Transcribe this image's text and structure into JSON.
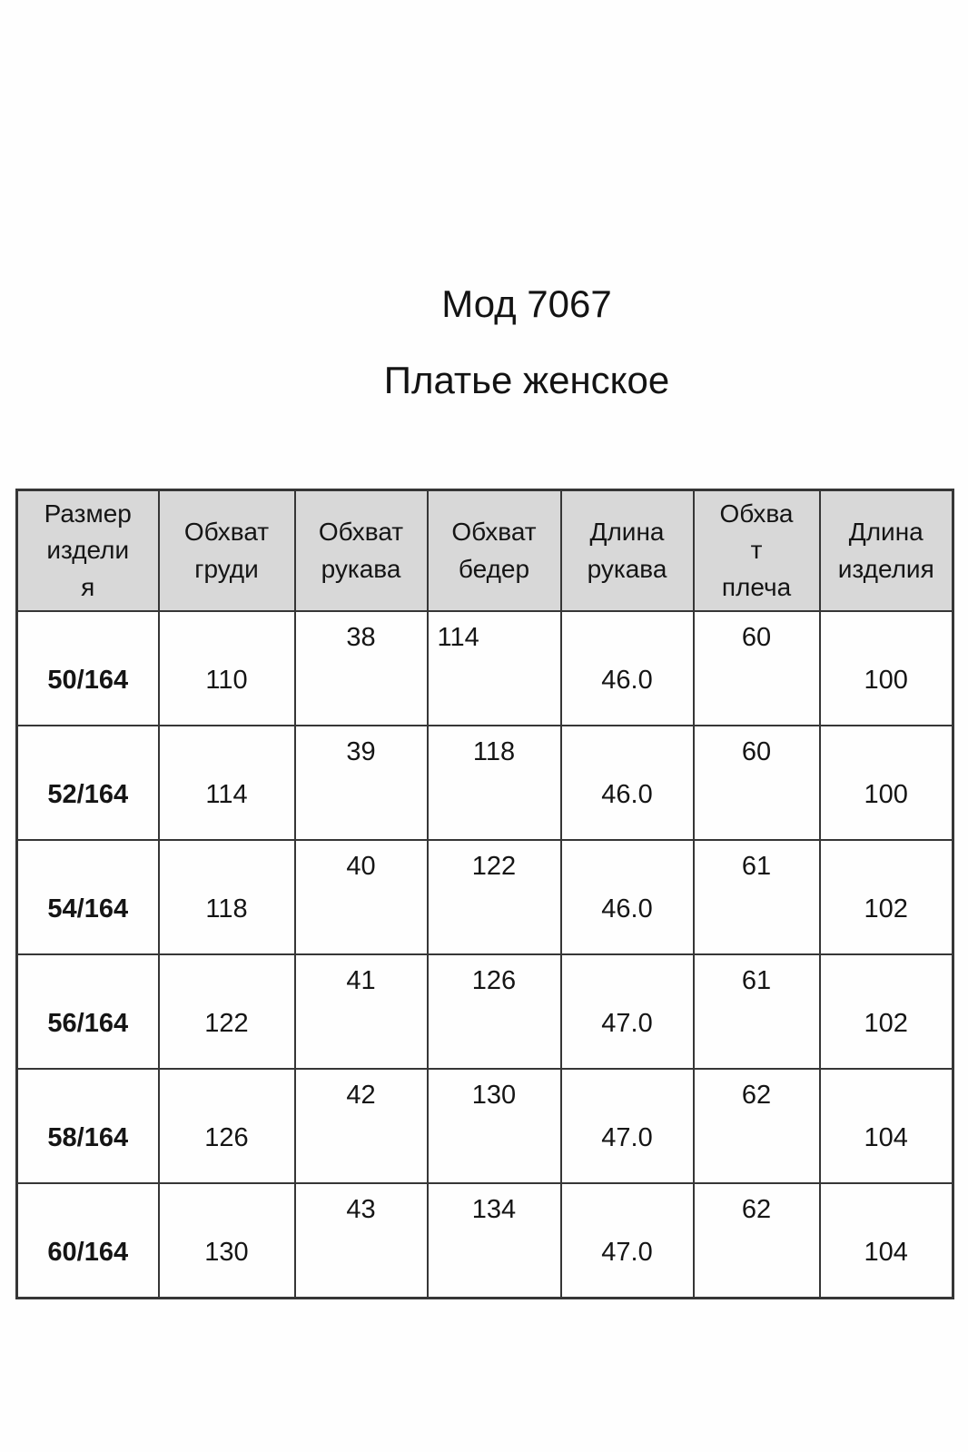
{
  "page": {
    "title": "Мод 7067",
    "subtitle": "Платье женское"
  },
  "size_table": {
    "header_bg": "#d8d8d8",
    "border_color": "#363636",
    "headers": [
      "Размер\nиздели\nя",
      "Обхват\nгруди",
      "Обхват\nрукава",
      "Обхват\nбедер",
      "Длина\nрукава",
      "Обхва\nт\nплеча",
      "Длина\nизделия"
    ],
    "rows": [
      [
        "50/164",
        "110",
        "38",
        "114",
        "46.0",
        "60",
        "100"
      ],
      [
        "52/164",
        "114",
        "39",
        "118",
        "46.0",
        "60",
        "100"
      ],
      [
        "54/164",
        "118",
        "40",
        "122",
        "46.0",
        "61",
        "102"
      ],
      [
        "56/164",
        "122",
        "41",
        "126",
        "47.0",
        "61",
        "102"
      ],
      [
        "58/164",
        "126",
        "42",
        "130",
        "47.0",
        "62",
        "104"
      ],
      [
        "60/164",
        "130",
        "43",
        "134",
        "47.0",
        "62",
        "104"
      ]
    ]
  }
}
